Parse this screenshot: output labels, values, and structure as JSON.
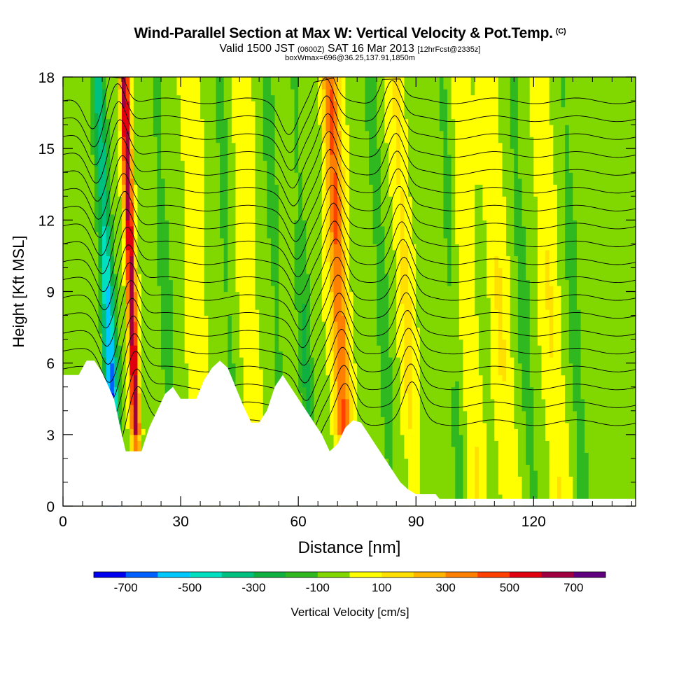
{
  "title": {
    "main": "Wind-Parallel Section at Max W: Vertical Velocity & Pot.Temp.",
    "copyright": "(C)",
    "valid_prefix": "Valid 1500 JST",
    "valid_zulu": "(0600Z)",
    "valid_date": "SAT 16 Mar 2013",
    "forecast": "[12hrFcst@2335z]",
    "box": "boxWmax=696@36.25,137.91,1850m"
  },
  "chart_data": {
    "type": "heatmap",
    "xlabel": "Distance [nm]",
    "ylabel": "Height [Kft MSL]",
    "xlim": [
      0,
      146
    ],
    "ylim": [
      0,
      18
    ],
    "xticks": [
      0,
      30,
      60,
      90,
      120
    ],
    "yticks": [
      0,
      3,
      6,
      9,
      12,
      15,
      18
    ],
    "colorbar": {
      "label": "Vertical Velocity [cm/s]",
      "tick_values": [
        -700,
        -500,
        -300,
        -100,
        100,
        300,
        500,
        700
      ],
      "tick_labels": [
        "-700",
        "-500",
        "-300",
        "-100",
        "100",
        "300",
        "500",
        "700"
      ],
      "bounds": [
        -800,
        -700,
        -600,
        -500,
        -400,
        -300,
        -200,
        -100,
        0,
        100,
        200,
        300,
        400,
        500,
        600,
        700,
        800
      ],
      "colors": [
        "#0000f0",
        "#0060ff",
        "#00c8ff",
        "#00e0c0",
        "#00c080",
        "#10b040",
        "#30b820",
        "#80d800",
        "#ffff00",
        "#ffe000",
        "#ffb400",
        "#ff8000",
        "#ff4000",
        "#e00010",
        "#a00040",
        "#600080"
      ]
    },
    "background_band": "-100 to 0",
    "updrafts": [
      {
        "x": 18,
        "w_max": 700
      },
      {
        "x": 71,
        "w_max": 450
      },
      {
        "x": 88,
        "w_max": 150
      }
    ],
    "downdrafts": [
      {
        "x": 12,
        "w_min": -700
      },
      {
        "x": 62,
        "w_min": -200
      }
    ],
    "terrain": [
      [
        0,
        5.5
      ],
      [
        4,
        5.5
      ],
      [
        6,
        6.1
      ],
      [
        8,
        6.1
      ],
      [
        10,
        5.6
      ],
      [
        13,
        4.5
      ],
      [
        15,
        3.0
      ],
      [
        16,
        2.3
      ],
      [
        20,
        2.3
      ],
      [
        22,
        3.3
      ],
      [
        24,
        4.0
      ],
      [
        26,
        4.7
      ],
      [
        28,
        5.0
      ],
      [
        30,
        4.5
      ],
      [
        34,
        4.5
      ],
      [
        36,
        5.3
      ],
      [
        38,
        5.8
      ],
      [
        40,
        6.1
      ],
      [
        42,
        5.8
      ],
      [
        44,
        5.0
      ],
      [
        46,
        4.2
      ],
      [
        48,
        3.5
      ],
      [
        50,
        3.5
      ],
      [
        52,
        4.0
      ],
      [
        54,
        5.0
      ],
      [
        56,
        5.5
      ],
      [
        58,
        5.0
      ],
      [
        60,
        4.5
      ],
      [
        62,
        4.0
      ],
      [
        64,
        3.5
      ],
      [
        66,
        3.0
      ],
      [
        68,
        2.3
      ],
      [
        70,
        2.6
      ],
      [
        72,
        3.3
      ],
      [
        74,
        3.6
      ],
      [
        76,
        3.5
      ],
      [
        78,
        3.0
      ],
      [
        80,
        2.5
      ],
      [
        82,
        2.0
      ],
      [
        84,
        1.5
      ],
      [
        86,
        1.0
      ],
      [
        88,
        0.7
      ],
      [
        90,
        0.5
      ],
      [
        95,
        0.5
      ],
      [
        96,
        0.3
      ],
      [
        146,
        0.3
      ]
    ]
  }
}
